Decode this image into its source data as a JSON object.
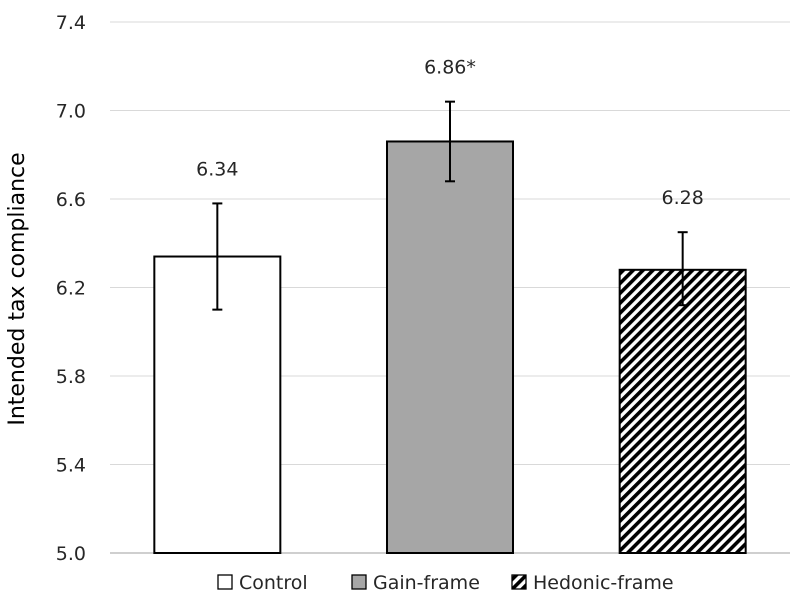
{
  "chart_data": {
    "type": "bar",
    "categories": [
      "Control",
      "Gain-frame",
      "Hedonic-frame"
    ],
    "values": [
      6.34,
      6.86,
      6.28
    ],
    "error_low": [
      6.1,
      6.68,
      6.12
    ],
    "error_high": [
      6.58,
      7.04,
      6.45
    ],
    "data_labels": [
      "6.34",
      "6.86*",
      "6.28"
    ],
    "fills": [
      "#ffffff",
      "#a6a6a6",
      "hatch"
    ],
    "title": "",
    "xlabel": "",
    "ylabel": "Intended tax compliance",
    "ylim": [
      5.0,
      7.4
    ],
    "yticks": [
      "5.0",
      "5.4",
      "5.8",
      "6.2",
      "6.6",
      "7.0",
      "7.4"
    ],
    "grid": true,
    "legend_position": "bottom",
    "colors": {
      "grid": "#d9d9d9",
      "bar_edge": "#000000",
      "gain_fill": "#a6a6a6",
      "hatch": "#000000"
    }
  }
}
